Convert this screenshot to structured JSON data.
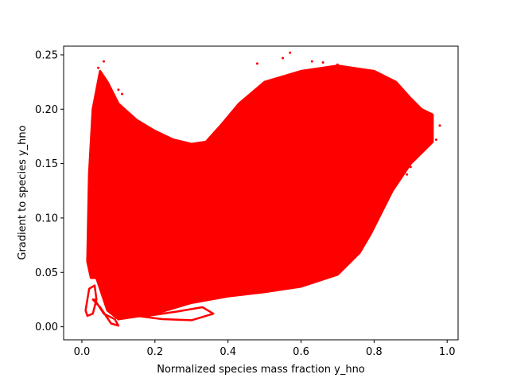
{
  "chart_data": {
    "type": "scatter",
    "title": "",
    "xlabel": "Normalized species mass fraction y_hno",
    "ylabel": "Gradient to species y_hno",
    "xlim": [
      -0.05,
      1.03
    ],
    "ylim": [
      -0.012,
      0.258
    ],
    "xticks": [
      0.0,
      0.2,
      0.4,
      0.6,
      0.8,
      1.0
    ],
    "xtick_labels": [
      "0.0",
      "0.2",
      "0.4",
      "0.6",
      "0.8",
      "1.0"
    ],
    "yticks": [
      0.0,
      0.05,
      0.1,
      0.15,
      0.2,
      0.25
    ],
    "ytick_labels": [
      "0.00",
      "0.05",
      "0.10",
      "0.15",
      "0.20",
      "0.25"
    ],
    "grid": false,
    "legend": "none",
    "marker_color": "#ff0000",
    "region_boundary": {
      "x": [
        0.03,
        0.02,
        0.015,
        0.025,
        0.04,
        0.07,
        0.1,
        0.2,
        0.3,
        0.4,
        0.5,
        0.6,
        0.7,
        0.76,
        0.79,
        0.82,
        0.85,
        0.88,
        0.9,
        0.93,
        0.96,
        0.96,
        0.93,
        0.9,
        0.86,
        0.8,
        0.7,
        0.6,
        0.5,
        0.43,
        0.38,
        0.34,
        0.3,
        0.25,
        0.2,
        0.15,
        0.1,
        0.07,
        0.05
      ],
      "y": [
        0.2,
        0.14,
        0.06,
        0.045,
        0.045,
        0.015,
        0.007,
        0.012,
        0.022,
        0.028,
        0.032,
        0.037,
        0.048,
        0.068,
        0.085,
        0.105,
        0.125,
        0.14,
        0.15,
        0.16,
        0.17,
        0.195,
        0.2,
        0.21,
        0.225,
        0.235,
        0.24,
        0.235,
        0.225,
        0.205,
        0.185,
        0.17,
        0.168,
        0.172,
        0.18,
        0.19,
        0.205,
        0.225,
        0.235
      ]
    },
    "low_loops": [
      {
        "x": [
          0.01,
          0.02,
          0.035,
          0.04,
          0.03,
          0.015,
          0.01
        ],
        "y": [
          0.015,
          0.035,
          0.038,
          0.025,
          0.012,
          0.01,
          0.015
        ]
      },
      {
        "x": [
          0.03,
          0.05,
          0.08,
          0.1,
          0.09,
          0.06,
          0.035
        ],
        "y": [
          0.025,
          0.018,
          0.003,
          0.001,
          0.007,
          0.012,
          0.025
        ]
      },
      {
        "x": [
          0.15,
          0.22,
          0.3,
          0.36,
          0.33,
          0.26,
          0.18
        ],
        "y": [
          0.01,
          0.007,
          0.006,
          0.012,
          0.018,
          0.014,
          0.01
        ]
      }
    ],
    "outliers": {
      "x": [
        0.06,
        0.045,
        0.1,
        0.11,
        0.57,
        0.55,
        0.66,
        0.7,
        0.83,
        0.85,
        0.87,
        0.89,
        0.92,
        0.95,
        0.98,
        0.9,
        0.97,
        0.86,
        0.48,
        0.45,
        0.4,
        0.63
      ],
      "y": [
        0.244,
        0.238,
        0.218,
        0.214,
        0.252,
        0.247,
        0.243,
        0.241,
        0.162,
        0.155,
        0.145,
        0.14,
        0.186,
        0.174,
        0.185,
        0.147,
        0.172,
        0.133,
        0.242,
        0.21,
        0.178,
        0.244
      ]
    }
  }
}
